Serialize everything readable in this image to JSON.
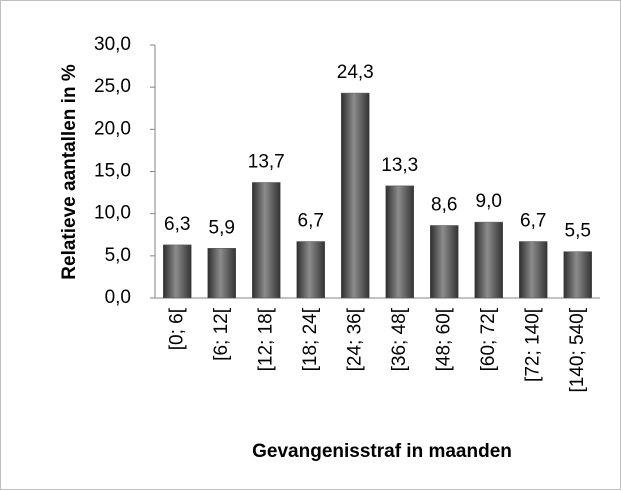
{
  "chart_data": {
    "type": "bar",
    "y_label": "Relatieve aantallen in %",
    "x_label": "Gevangenisstraf in maanden",
    "categories": [
      "[0; 6[",
      "[6; 12[",
      "[12; 18[",
      "[18; 24[",
      "[24; 36[",
      "[36; 48[",
      "[48; 60[",
      "[60; 72[",
      "[72; 140[",
      "[140; 540["
    ],
    "values": [
      6.3,
      5.9,
      13.7,
      6.7,
      24.3,
      13.3,
      8.6,
      9.0,
      6.7,
      5.5
    ],
    "value_labels": [
      "6,3",
      "5,9",
      "13,7",
      "6,7",
      "24,3",
      "13,3",
      "8,6",
      "9,0",
      "6,7",
      "5,5"
    ],
    "color": "#595959",
    "ylim": [
      0,
      30
    ],
    "yticks": [
      {
        "value": 0,
        "label": "0,0"
      },
      {
        "value": 5,
        "label": "5,0"
      },
      {
        "value": 10,
        "label": "10,0"
      },
      {
        "value": 15,
        "label": "15,0"
      },
      {
        "value": 20,
        "label": "20,0"
      },
      {
        "value": 25,
        "label": "25,0"
      },
      {
        "value": 30,
        "label": "30,0"
      }
    ]
  }
}
